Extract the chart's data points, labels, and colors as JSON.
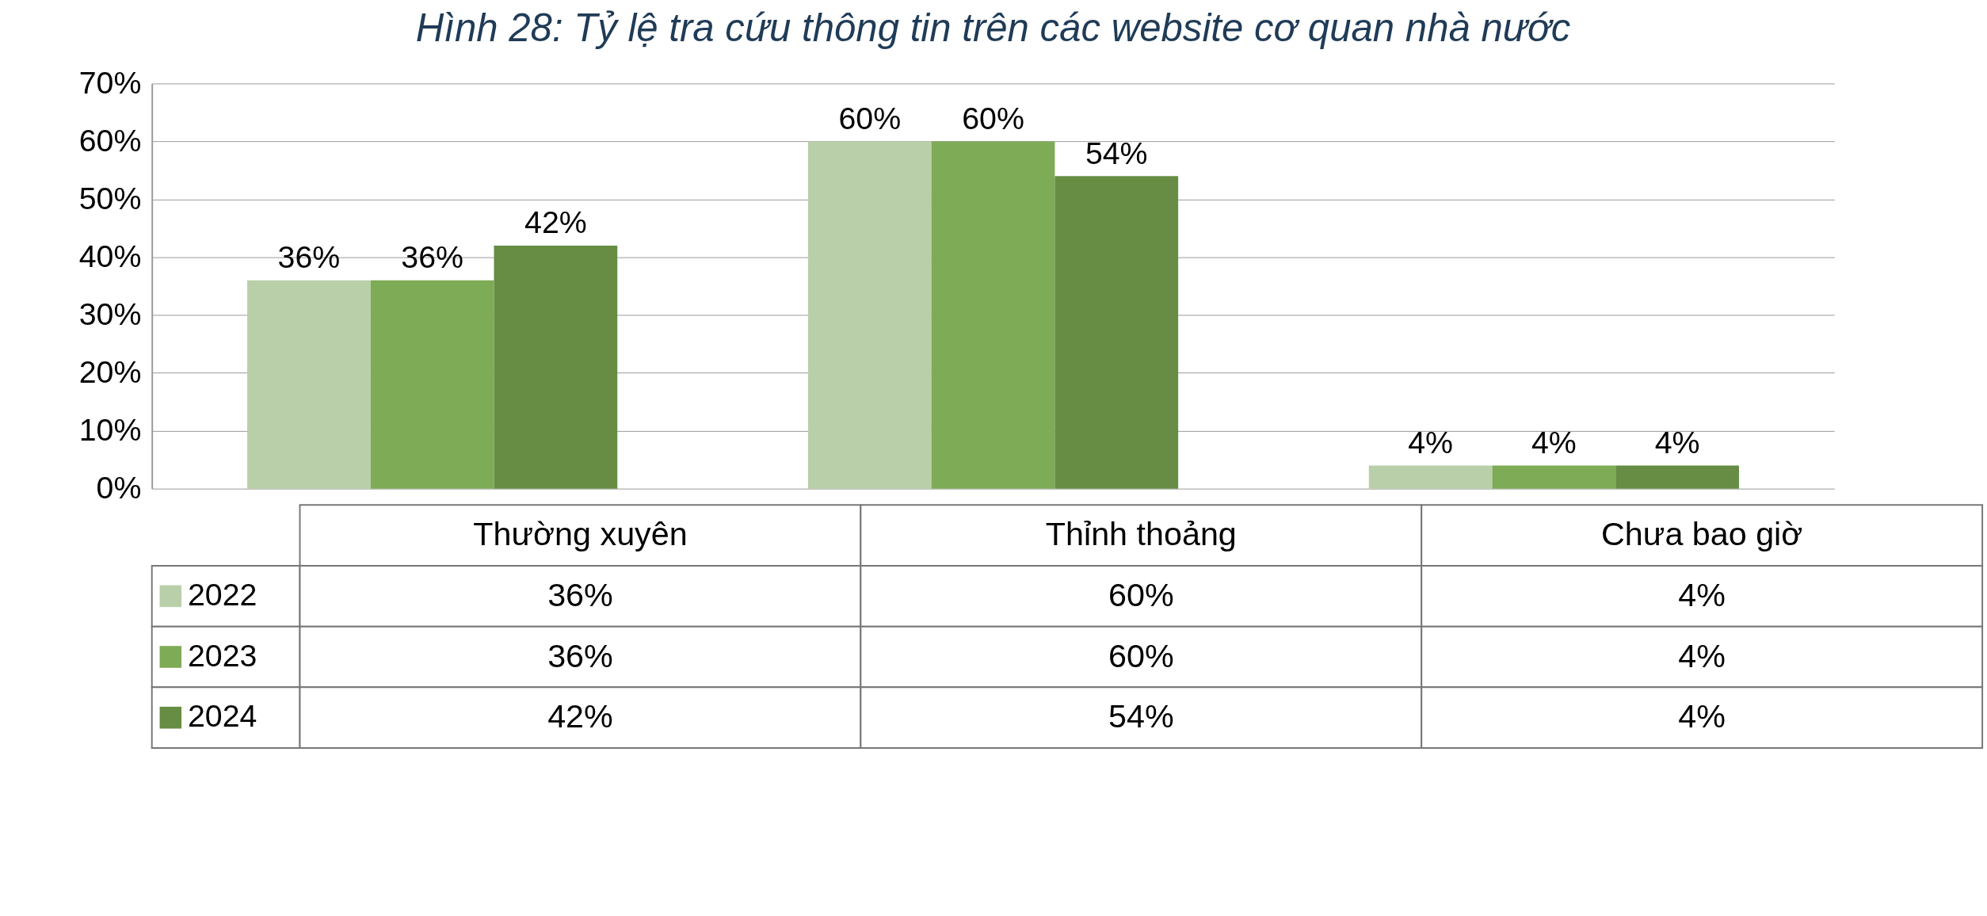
{
  "chart_data": {
    "type": "bar",
    "title": "Hình 28: Tỷ lệ tra cứu thông tin trên các website cơ quan nhà nước",
    "categories": [
      "Thường xuyên",
      "Thỉnh thoảng",
      "Chưa bao giờ"
    ],
    "series": [
      {
        "name": "2022",
        "color": "#b9cfa9",
        "values": [
          36,
          60,
          4
        ],
        "value_labels": [
          "36%",
          "60%",
          "4%"
        ]
      },
      {
        "name": "2023",
        "color": "#7eab55",
        "values": [
          36,
          60,
          4
        ],
        "value_labels": [
          "36%",
          "60%",
          "4%"
        ]
      },
      {
        "name": "2024",
        "color": "#668d43",
        "values": [
          42,
          54,
          4
        ],
        "value_labels": [
          "42%",
          "54%",
          "4%"
        ]
      }
    ],
    "ylim": [
      0,
      70
    ],
    "yticks": [
      {
        "value": 0,
        "label": "0%"
      },
      {
        "value": 10,
        "label": "10%"
      },
      {
        "value": 20,
        "label": "20%"
      },
      {
        "value": 30,
        "label": "30%"
      },
      {
        "value": 40,
        "label": "40%"
      },
      {
        "value": 50,
        "label": "50%"
      },
      {
        "value": 60,
        "label": "60%"
      },
      {
        "value": 70,
        "label": "70%"
      }
    ],
    "grid": "y",
    "legend": "bottom"
  }
}
